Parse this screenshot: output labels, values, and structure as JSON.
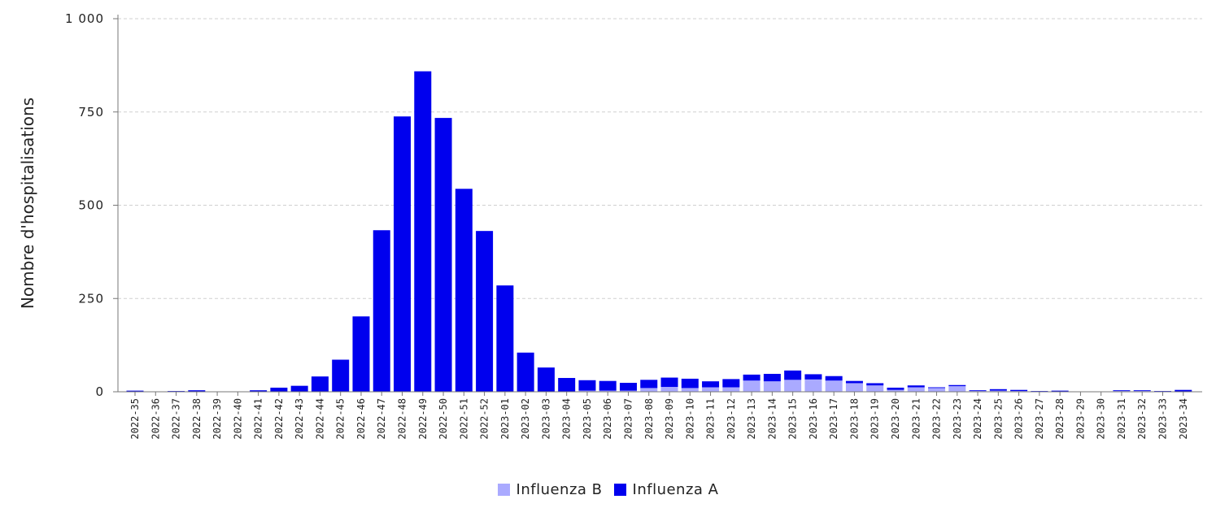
{
  "chart_data": {
    "type": "bar",
    "stacked": true,
    "title": "",
    "xlabel": "",
    "ylabel": "Nombre d'hospitalisations",
    "ylim": [
      0,
      1000
    ],
    "yticks": [
      0,
      250,
      500,
      750,
      1000
    ],
    "ytick_labels": [
      "0",
      "250",
      "500",
      "750",
      "1 000"
    ],
    "grid": true,
    "legend_position": "bottom-center",
    "categories": [
      "2022-35",
      "2022-36",
      "2022-37",
      "2022-38",
      "2022-39",
      "2022-40",
      "2022-41",
      "2022-42",
      "2022-43",
      "2022-44",
      "2022-45",
      "2022-46",
      "2022-47",
      "2022-48",
      "2022-49",
      "2022-50",
      "2022-51",
      "2022-52",
      "2023-01",
      "2023-02",
      "2023-03",
      "2023-04",
      "2023-05",
      "2023-06",
      "2023-07",
      "2023-08",
      "2023-09",
      "2023-10",
      "2023-11",
      "2023-12",
      "2023-13",
      "2023-14",
      "2023-15",
      "2023-16",
      "2023-17",
      "2023-18",
      "2023-19",
      "2023-20",
      "2023-21",
      "2023-22",
      "2023-23",
      "2023-24",
      "2023-25",
      "2023-26",
      "2023-27",
      "2023-28",
      "2023-29",
      "2023-30",
      "2023-31",
      "2023-32",
      "2023-33",
      "2023-34"
    ],
    "series": [
      {
        "name": "Influenza B",
        "color": "#aaaaff",
        "values": [
          0,
          0,
          1,
          0,
          0,
          0,
          0,
          0,
          0,
          0,
          0,
          0,
          0,
          0,
          0,
          0,
          0,
          0,
          0,
          0,
          0,
          1,
          3,
          3,
          3,
          10,
          13,
          10,
          12,
          12,
          30,
          28,
          32,
          33,
          30,
          23,
          17,
          5,
          12,
          10,
          15,
          2,
          3,
          2,
          1,
          1,
          1,
          1,
          2,
          2,
          1,
          1
        ]
      },
      {
        "name": "Influenza A",
        "color": "#0000ee",
        "values": [
          3,
          0,
          1,
          4,
          0,
          0,
          4,
          11,
          16,
          41,
          86,
          202,
          433,
          738,
          859,
          734,
          544,
          431,
          285,
          105,
          65,
          36,
          28,
          26,
          21,
          22,
          25,
          25,
          16,
          22,
          16,
          20,
          25,
          14,
          12,
          6,
          6,
          6,
          5,
          2,
          3,
          2,
          4,
          3,
          1,
          2,
          0,
          0,
          2,
          2,
          1,
          4
        ]
      }
    ]
  }
}
